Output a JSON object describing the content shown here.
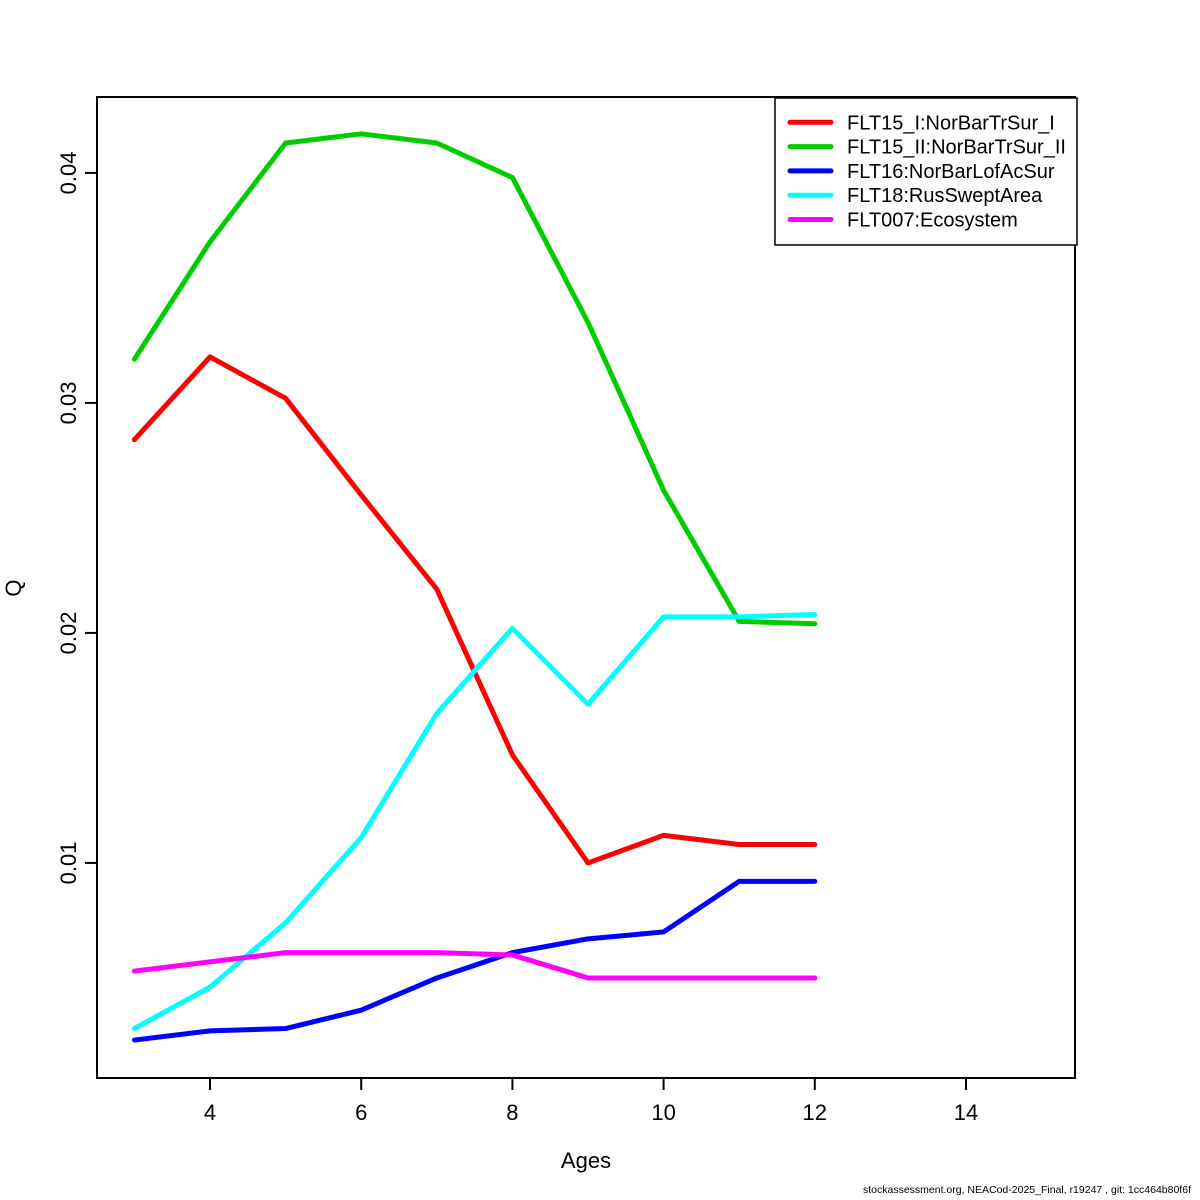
{
  "figure": {
    "background": "#ffffff",
    "footer": "stockassessment.org, NEACod-2025_Final, r19247 , git: 1cc464b80f6f"
  },
  "chart_data": {
    "type": "line",
    "title": "",
    "xlabel": "Ages",
    "ylabel": "Q",
    "grid": false,
    "legend_position": "top-right",
    "xlim": [
      2.505,
      15.442
    ],
    "ylim": [
      0.00065,
      0.0433
    ],
    "x_ticks": [
      4,
      6,
      8,
      10,
      12,
      14
    ],
    "x_tick_labels": [
      "4",
      "6",
      "8",
      "10",
      "12",
      "14"
    ],
    "y_ticks": [
      0.01,
      0.02,
      0.03,
      0.04
    ],
    "y_tick_labels": [
      "0.01",
      "0.02",
      "0.03",
      "0.04"
    ],
    "x": [
      3,
      4,
      5,
      6,
      7,
      8,
      9,
      10,
      11,
      12
    ],
    "series": [
      {
        "name": "FLT15_I:NorBarTrSur_I",
        "color": "#FF0000",
        "values": [
          0.0284,
          0.032,
          0.0302,
          0.026,
          0.0219,
          0.0147,
          0.01,
          0.0112,
          0.0108,
          0.0108
        ]
      },
      {
        "name": "FLT15_II:NorBarTrSur_II",
        "color": "#00CD00",
        "values": [
          0.0319,
          0.037,
          0.0413,
          0.0417,
          0.0413,
          0.0398,
          0.0335,
          0.0262,
          0.0205,
          0.0204
        ]
      },
      {
        "name": "FLT16:NorBarLofAcSur",
        "color": "#0000FF",
        "values": [
          0.0023,
          0.0027,
          0.0028,
          0.0036,
          0.005,
          0.0061,
          0.0067,
          0.007,
          0.0092,
          0.0092
        ]
      },
      {
        "name": "FLT18:RusSweptArea",
        "color": "#00FFFF",
        "values": [
          0.0028,
          0.0046,
          0.0074,
          0.0111,
          0.0165,
          0.0202,
          0.0169,
          0.0207,
          0.0207,
          0.0208
        ]
      },
      {
        "name": "FLT007:Ecosystem",
        "color": "#FF00FF",
        "values": [
          0.0053,
          0.0057,
          0.0061,
          0.0061,
          0.0061,
          0.006,
          0.005,
          0.005,
          0.005,
          0.005
        ]
      }
    ]
  }
}
